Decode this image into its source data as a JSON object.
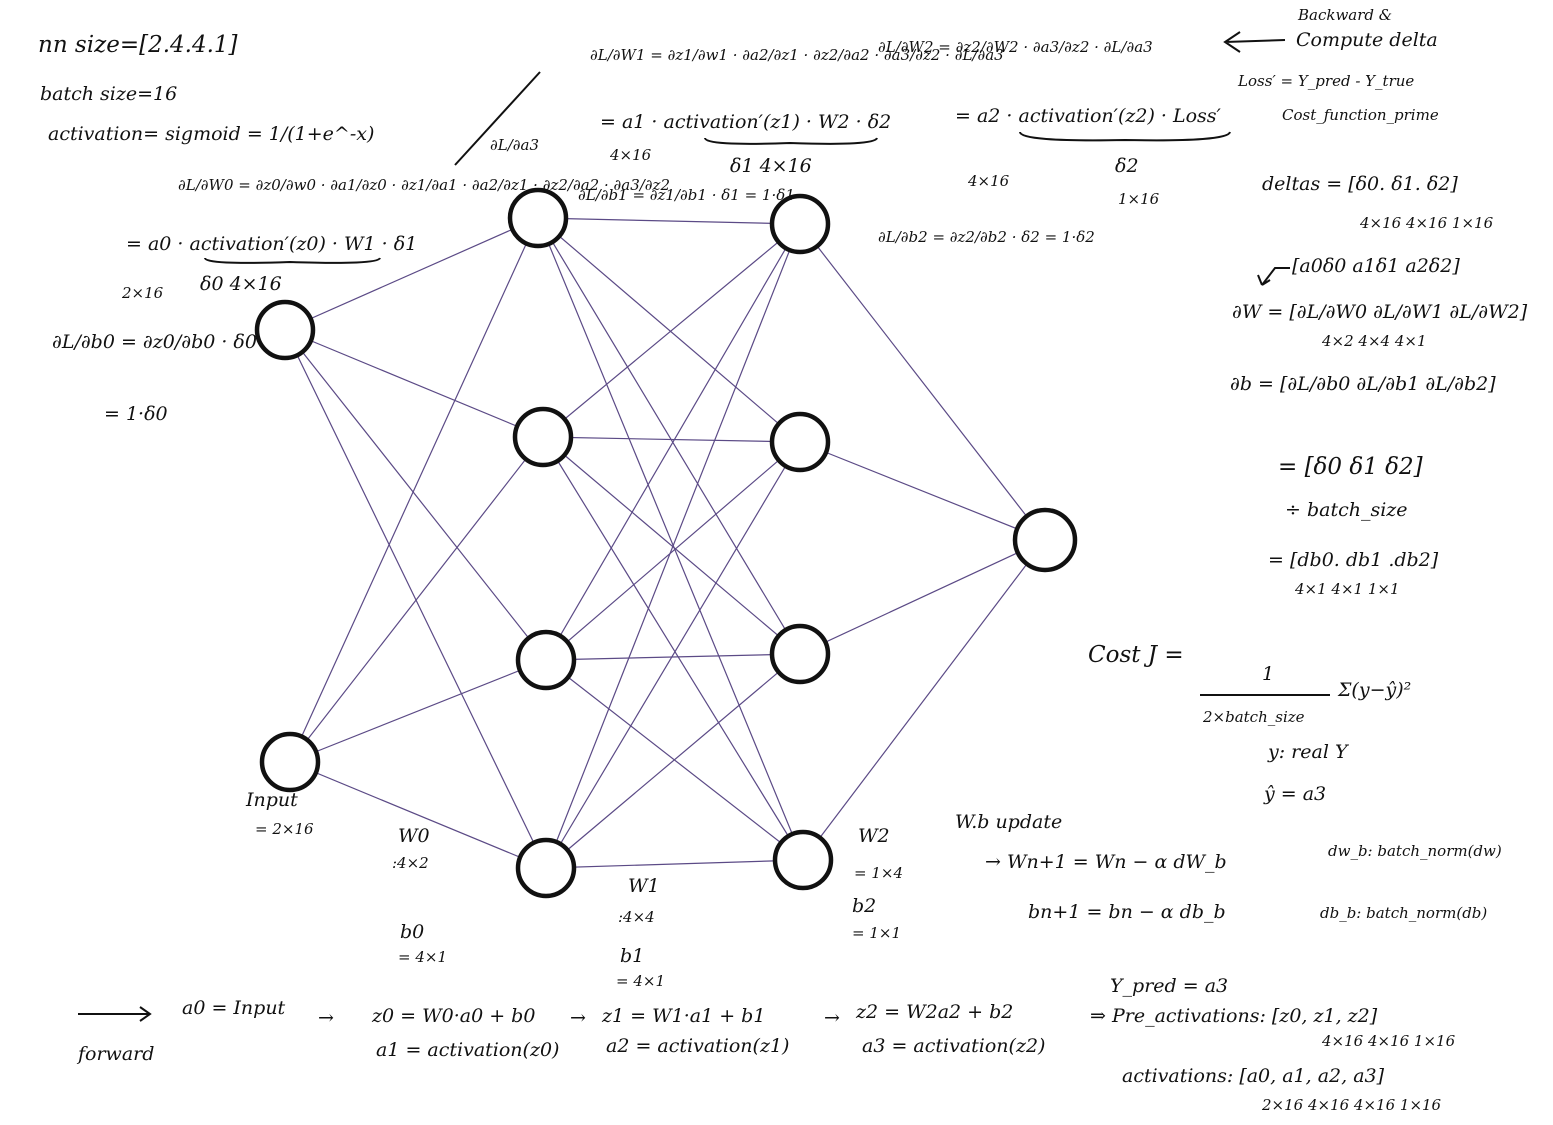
{
  "header": {
    "nn_size": "nn size=[2.4.4.1]",
    "batch_size": "batch size=16",
    "activation": "activation= sigmoid = 1/(1+e^-x)"
  },
  "backward_top": {
    "dL_dW1": "∂L/∂W1 = ∂z1/∂w1 · ∂a2/∂z1 · ∂z2/∂a2 · ∂a3/∂z2 · ∂L/∂a3",
    "dL_dW1_expand": "= a1 · activation′(z1) · W2 · δ2",
    "delta1": "δ1 4×16",
    "shape_4x16_a": "4×16",
    "dL_db1": "∂L/∂b1 = ∂z1/∂b1 · δ1 = 1·δ1",
    "dL_dW2": "∂L/∂W2 = ∂z2/∂W2 · ∂a3/∂z2 · ∂L/∂a3",
    "dL_dW2_expand": "= a2 · activation′(z2) · Loss′",
    "delta2": "δ2",
    "delta2_shape": "1×16",
    "dL_db2": "∂L/∂b2 = ∂z2/∂b2 · δ2 = 1·δ2",
    "shape_4x16_b": "4×16",
    "backward_label": "Backward &",
    "compute_delta": "Compute delta",
    "loss_def": "Loss′ = Y_pred - Y_true",
    "cost_prime": "Cost_function_prime"
  },
  "backward_left": {
    "dL_a3": "∂L/∂a3",
    "dL_dW0": "∂L/∂W0 = ∂z0/∂w0 · ∂a1/∂z0 · ∂z1/∂a1 · ∂a2/∂z1 · ∂z2/∂a2 · ∂a3/∂z2",
    "dL_dW0_expand": "= a0 · activation′(z0) · W1 · δ1",
    "delta0": "δ0 4×16",
    "shape_2x16": "2×16",
    "dL_db0": "∂L/∂b0 = ∂z0/∂b0 · δ0",
    "dL_db0_result": "= 1·δ0"
  },
  "right_panel": {
    "deltas": "deltas = [δ0. δ1. δ2]",
    "deltas_shapes": "4×16  4×16  1×16",
    "aδ_row": "[a0δ0   a1δ1   a2δ2]",
    "dW": "∂W = [∂L/∂W0   ∂L/∂W1   ∂L/∂W2]",
    "dW_shapes": "4×2   4×4   4×1",
    "db": "∂b = [∂L/∂b0   ∂L/∂b1   ∂L/∂b2]",
    "db_eq": "= [δ0   δ1   δ2]",
    "div_batch": "÷ batch_size",
    "db_list": "= [db0. db1 .db2]",
    "db_list_shapes": "4×1   4×1   1×1",
    "cost_label": "Cost J =",
    "cost_num": "1",
    "cost_sum": "Σ(y−ŷ)²",
    "cost_den": "2×batch_size",
    "y_real": "y: real Y",
    "y_hat": "ŷ = a3"
  },
  "update": {
    "title": "W.b update",
    "w_rule": "→ Wn+1 = Wn − α dW_b",
    "b_rule": "bn+1 = bn − α db_b",
    "dw_b": "dw_b: batch_norm(dw)",
    "db_b": "db_b: batch_norm(db)"
  },
  "network_labels": {
    "input": "Input",
    "input_shape": "= 2×16",
    "w0": "W0",
    "w0_shape": ":4×2",
    "b0": "b0",
    "b0_shape": "= 4×1",
    "w1": "W1",
    "w1_shape": ":4×4",
    "b1": "b1",
    "b1_shape": "= 4×1",
    "w2": "W2",
    "w2_shape": "= 1×4",
    "b2": "b2",
    "b2_shape": "= 1×1"
  },
  "forward": {
    "label": "forward",
    "a0": "a0 = Input",
    "z0": "z0 = W0·a0 + b0",
    "a1": "a1 = activation(z0)",
    "z1": "z1 = W1·a1 + b1",
    "a2": "a2 = activation(z1)",
    "z2": "z2 = W2a2 + b2",
    "a3": "a3 = activation(z2)",
    "y_pred": "Y_pred = a3",
    "pre_activations": "⇒ Pre_activations: [z0, z1, z2]",
    "pre_shapes": "4×16  4×16  1×16",
    "activations": "activations: [a0, a1, a2, a3]",
    "act_shapes": "2×16  4×16  4×16  1×16"
  }
}
